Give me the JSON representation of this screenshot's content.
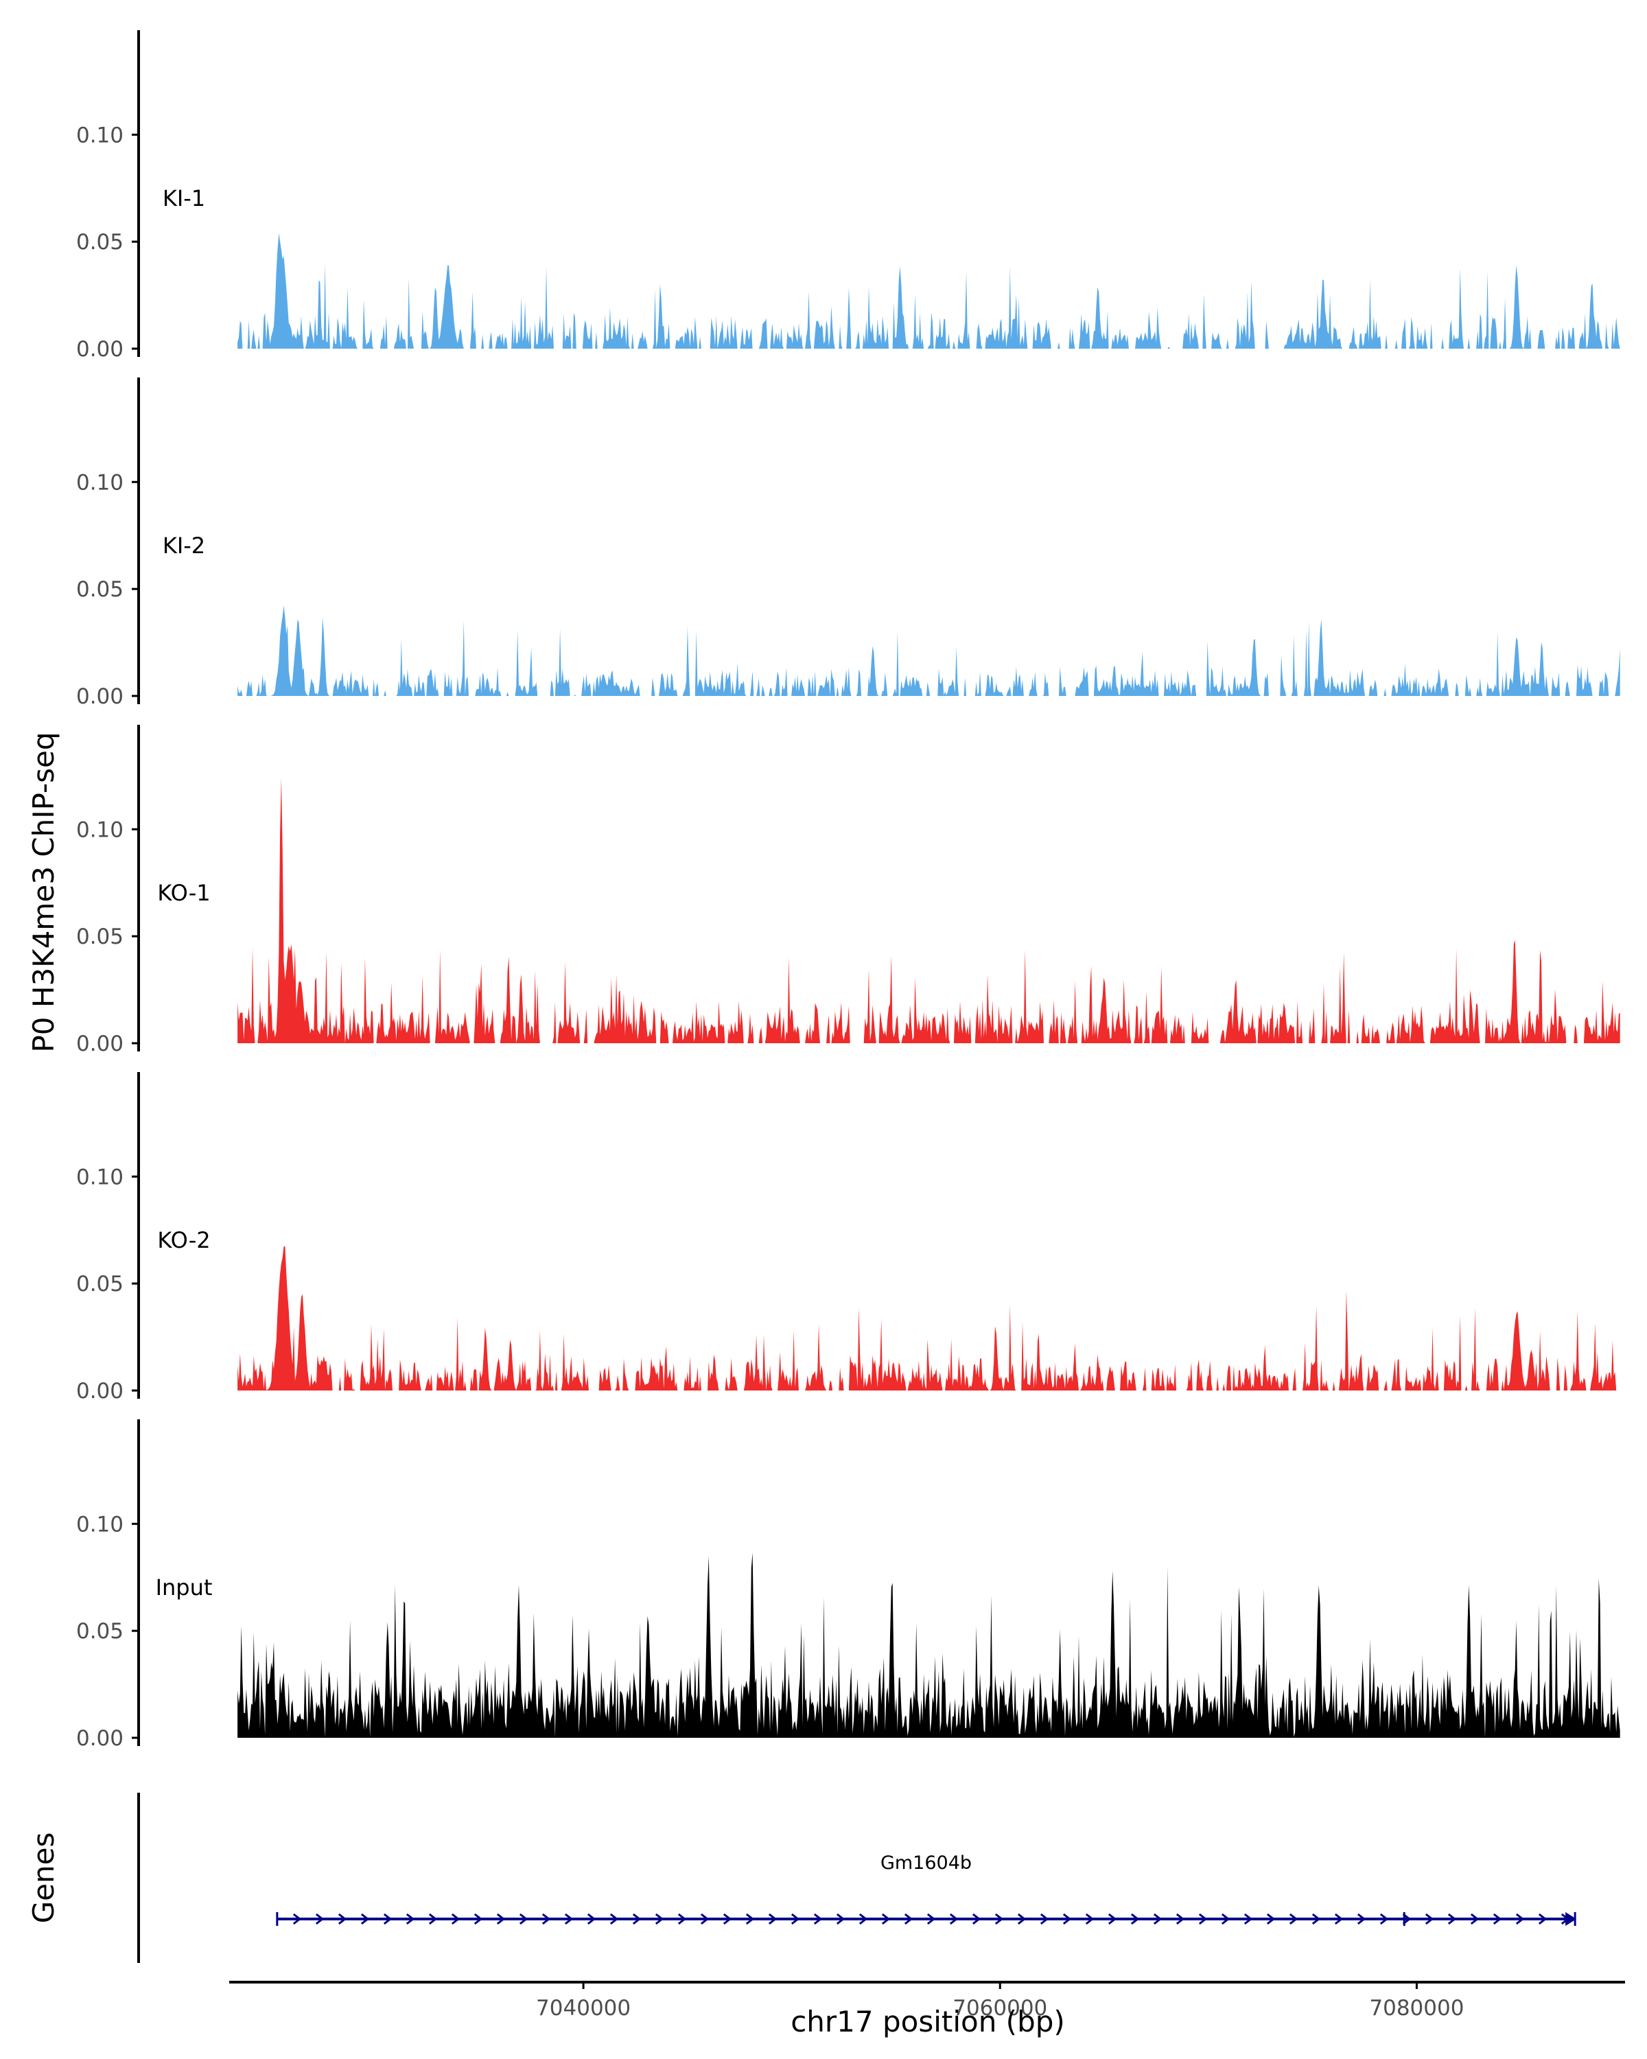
{
  "chart_data": {
    "type": "area",
    "ylabel": "P0 H3K4me3 ChIP-seq",
    "xlabel": "chr17 position (bp)",
    "x_range": [
      7023000,
      7090000
    ],
    "x_ticks": [
      {
        "value": 7040000,
        "label": "7040000"
      },
      {
        "value": 7060000,
        "label": "7060000"
      },
      {
        "value": 7080000,
        "label": "7080000"
      }
    ],
    "y_ticks": [
      {
        "value": 0.0,
        "label": "0.00"
      },
      {
        "value": 0.05,
        "label": "0.05"
      },
      {
        "value": 0.1,
        "label": "0.10"
      }
    ],
    "ylim": [
      0,
      0.145
    ],
    "colors": {
      "KI": "#5aaae8",
      "KO": "#ef2b2b",
      "Input": "#000000",
      "gene": "#00008b"
    },
    "tracks": [
      {
        "name": "KI-1",
        "label": "KI-1",
        "color": "#5aaae8",
        "seed": 11,
        "base": 0.006,
        "noise": 0.012,
        "spikes": 0.05,
        "gaps": 0.32,
        "peaks": [
          [
            7025400,
            0.06,
            140
          ],
          [
            7025600,
            0.045,
            160
          ],
          [
            7033500,
            0.04,
            200
          ],
          [
            7032900,
            0.032,
            80
          ],
          [
            7055200,
            0.041,
            90
          ],
          [
            7064700,
            0.034,
            80
          ],
          [
            7075500,
            0.038,
            90
          ],
          [
            7084800,
            0.042,
            100
          ],
          [
            7088400,
            0.035,
            80
          ],
          [
            7043700,
            0.032,
            70
          ]
        ]
      },
      {
        "name": "KI-2",
        "label": "KI-2",
        "color": "#5aaae8",
        "seed": 23,
        "base": 0.005,
        "noise": 0.01,
        "spikes": 0.04,
        "gaps": 0.3,
        "peaks": [
          [
            7025600,
            0.044,
            170
          ],
          [
            7026300,
            0.038,
            150
          ],
          [
            7027500,
            0.033,
            90
          ],
          [
            7053900,
            0.026,
            80
          ],
          [
            7072200,
            0.03,
            90
          ],
          [
            7075400,
            0.037,
            90
          ],
          [
            7084800,
            0.03,
            110
          ],
          [
            7086000,
            0.026,
            80
          ],
          [
            7089800,
            0.029,
            80
          ]
        ]
      },
      {
        "name": "KO-1",
        "label": "KO-1",
        "color": "#ef2b2b",
        "seed": 37,
        "base": 0.008,
        "noise": 0.013,
        "spikes": 0.05,
        "gaps": 0.18,
        "peaks": [
          [
            7025500,
            0.138,
            80
          ],
          [
            7025900,
            0.05,
            220
          ],
          [
            7026400,
            0.032,
            160
          ],
          [
            7037000,
            0.038,
            70
          ],
          [
            7035000,
            0.032,
            60
          ],
          [
            7084700,
            0.057,
            80
          ],
          [
            7065000,
            0.033,
            90
          ],
          [
            7071300,
            0.03,
            80
          ]
        ]
      },
      {
        "name": "KO-2",
        "label": "KO-2",
        "color": "#ef2b2b",
        "seed": 51,
        "base": 0.006,
        "noise": 0.012,
        "spikes": 0.045,
        "gaps": 0.24,
        "peaks": [
          [
            7025600,
            0.072,
            240
          ],
          [
            7026500,
            0.047,
            150
          ],
          [
            7035300,
            0.03,
            90
          ],
          [
            7036500,
            0.025,
            90
          ],
          [
            7059800,
            0.03,
            80
          ],
          [
            7084800,
            0.039,
            160
          ],
          [
            7085500,
            0.02,
            120
          ]
        ]
      },
      {
        "name": "Input",
        "label": "Input",
        "color": "#000000",
        "seed": 73,
        "base": 0.018,
        "noise": 0.022,
        "spikes": 0.045,
        "gaps": 0.0,
        "peaks": [
          [
            7046000,
            0.09,
            90
          ],
          [
            7048100,
            0.1,
            70
          ],
          [
            7054800,
            0.085,
            80
          ],
          [
            7065400,
            0.082,
            80
          ],
          [
            7075300,
            0.083,
            90
          ],
          [
            7071500,
            0.065,
            80
          ],
          [
            7036900,
            0.075,
            80
          ],
          [
            7043100,
            0.062,
            90
          ],
          [
            7082500,
            0.076,
            80
          ],
          [
            7030600,
            0.061,
            80
          ]
        ]
      }
    ],
    "genes_panel": {
      "label": "Genes",
      "gene": {
        "name": "Gm1604b",
        "start": 7025300,
        "end": 7087600,
        "strand": "+",
        "exons": [
          7025300,
          7079400,
          7087600
        ]
      }
    }
  }
}
